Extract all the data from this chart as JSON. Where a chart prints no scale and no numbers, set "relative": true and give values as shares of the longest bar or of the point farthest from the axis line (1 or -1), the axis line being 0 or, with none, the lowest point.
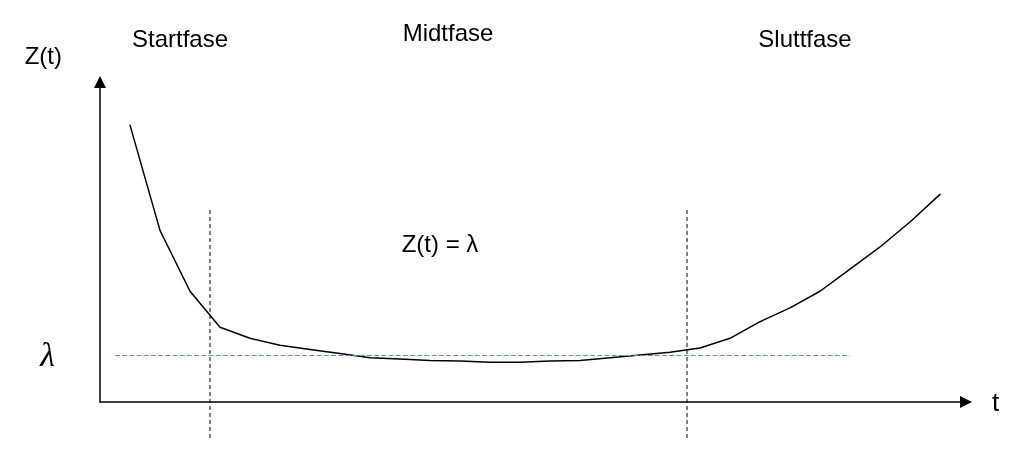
{
  "chart_data": {
    "type": "line",
    "relative": true,
    "xlabel": "t",
    "ylabel": "Z(t)",
    "categories": [
      null,
      null,
      null,
      null,
      null,
      null,
      null,
      null,
      null,
      null,
      null,
      null,
      null,
      null,
      null,
      null,
      null,
      null,
      null,
      null,
      null,
      null,
      null,
      null,
      null,
      null,
      null,
      null
    ],
    "series": [
      {
        "color": "#000000",
        "values": [
          1.0,
          0.62,
          0.4,
          0.27,
          0.23,
          0.205,
          0.19,
          0.175,
          0.16,
          0.155,
          0.15,
          0.148,
          0.144,
          0.144,
          0.148,
          0.15,
          0.16,
          0.17,
          0.18,
          0.195,
          0.23,
          0.29,
          0.34,
          0.4,
          0.48,
          0.56,
          0.65,
          0.75
        ]
      }
    ],
    "ref_lines": [
      {
        "axis": "y",
        "value": 0.17,
        "label": "λ",
        "color": "#5b8fc7",
        "line_style": "dashed"
      }
    ],
    "annotations": [
      "Startfase",
      "Midtfase",
      "Sluttfase",
      "Z(t) = λ"
    ],
    "marker": "none",
    "line_style": "solid",
    "grid": false
  }
}
